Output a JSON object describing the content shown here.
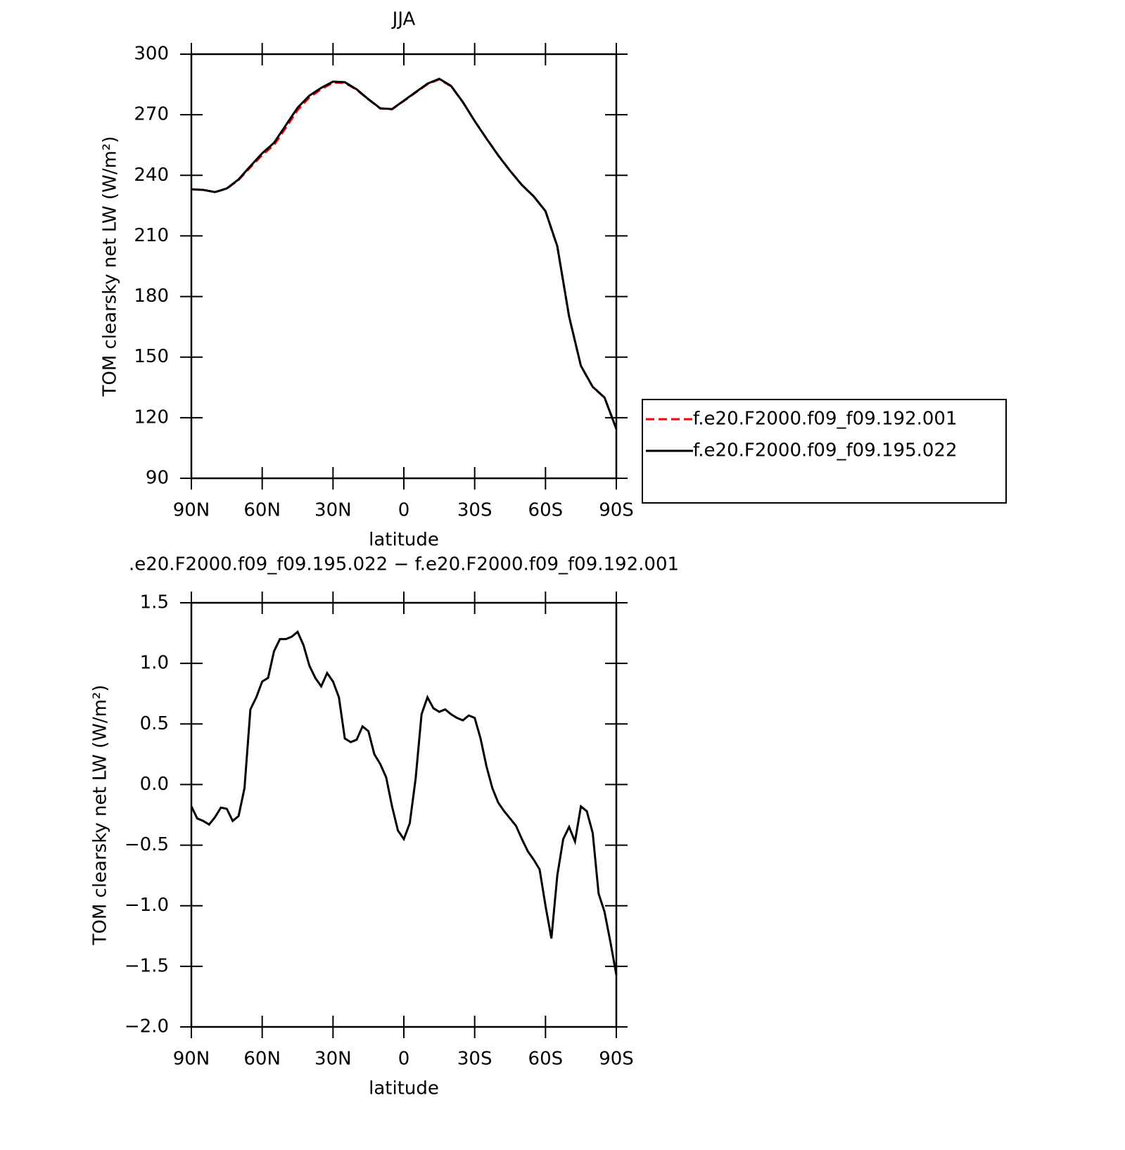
{
  "chart_data": [
    {
      "type": "line",
      "title": "JJA",
      "xlabel": "latitude",
      "ylabel": "TOM clearsky net LW (W/m²)",
      "x": [
        90,
        85,
        80,
        75,
        70,
        65,
        60,
        55,
        50,
        45,
        40,
        35,
        30,
        25,
        20,
        15,
        10,
        5,
        0,
        -5,
        -10,
        -15,
        -20,
        -25,
        -30,
        -35,
        -40,
        -45,
        -50,
        -55,
        -60,
        -65,
        -70,
        -75,
        -80,
        -85,
        -90
      ],
      "series": [
        {
          "name": "f.e20.F2000.f09_f09.192.001",
          "color": "#ff0000",
          "dash": "dashed",
          "values": [
            233.1,
            232.8,
            231.7,
            233.4,
            237.7,
            244.0,
            250.0,
            255.0,
            263.5,
            272.3,
            278.6,
            282.6,
            285.9,
            285.8,
            282.4,
            277.6,
            273.1,
            272.7,
            276.8,
            281.0,
            285.1,
            287.5,
            284.1,
            276.2,
            266.9,
            258.3,
            249.9,
            242.3,
            235.3,
            229.6,
            222.2,
            204.8,
            170.0,
            145.6,
            135.2,
            129.9,
            114.6
          ]
        },
        {
          "name": "f.e20.F2000.f09_f09.195.022",
          "color": "#000000",
          "dash": "solid",
          "values": [
            233.1,
            232.8,
            231.7,
            233.5,
            238.0,
            244.6,
            250.9,
            256.1,
            264.8,
            273.5,
            279.5,
            283.3,
            286.4,
            286.1,
            282.6,
            277.7,
            273.2,
            272.8,
            277.0,
            281.2,
            285.4,
            287.8,
            284.3,
            276.3,
            266.9,
            258.2,
            249.8,
            242.2,
            235.2,
            229.6,
            222.3,
            204.9,
            170.1,
            145.7,
            135.3,
            130.0,
            114.4
          ]
        }
      ],
      "xlim": [
        90,
        -90
      ],
      "xticks": [
        {
          "value": 90,
          "label": "90N"
        },
        {
          "value": 60,
          "label": "60N"
        },
        {
          "value": 30,
          "label": "30N"
        },
        0,
        {
          "value": -30,
          "label": "30S"
        },
        {
          "value": -60,
          "label": "60S"
        },
        {
          "value": -90,
          "label": "90S"
        }
      ],
      "ylim": [
        90,
        300
      ],
      "yticks": [
        90,
        120,
        150,
        180,
        210,
        240,
        270,
        300
      ],
      "legend": "right-outside"
    },
    {
      "type": "line",
      "title": ".e20.F2000.f09_f09.195.022 − f.e20.F2000.f09_f09.192.001",
      "xlabel": "latitude",
      "ylabel": "TOM clearsky net LW (W/m²)",
      "x": [
        90,
        87.5,
        85,
        82.5,
        80,
        77.5,
        75,
        72.5,
        70,
        67.5,
        65,
        62.5,
        60,
        57.5,
        55,
        52.5,
        50,
        47.5,
        45,
        42.5,
        40,
        37.5,
        35,
        32.5,
        30,
        27.5,
        25,
        22.5,
        20,
        17.5,
        15,
        12.5,
        10,
        7.5,
        5,
        2.5,
        0,
        -2.5,
        -5,
        -7.5,
        -10,
        -12.5,
        -15,
        -17.5,
        -20,
        -22.5,
        -25,
        -27.5,
        -30,
        -32.5,
        -35,
        -37.5,
        -40,
        -42.5,
        -45,
        -47.5,
        -50,
        -52.5,
        -55,
        -57.5,
        -60,
        -62.5,
        -65,
        -67.5,
        -70,
        -72.5,
        -75,
        -77.5,
        -80,
        -82.5,
        -85,
        -87.5,
        -90
      ],
      "color": "#000000",
      "values": [
        -0.18,
        -0.28,
        -0.3,
        -0.33,
        -0.27,
        -0.19,
        -0.2,
        -0.3,
        -0.26,
        -0.03,
        0.62,
        0.72,
        0.85,
        0.88,
        1.1,
        1.2,
        1.2,
        1.22,
        1.26,
        1.15,
        0.98,
        0.88,
        0.81,
        0.92,
        0.85,
        0.72,
        0.38,
        0.35,
        0.37,
        0.48,
        0.44,
        0.25,
        0.17,
        0.06,
        -0.18,
        -0.38,
        -0.45,
        -0.32,
        0.05,
        0.58,
        0.72,
        0.63,
        0.6,
        0.62,
        0.58,
        0.55,
        0.53,
        0.57,
        0.55,
        0.38,
        0.15,
        -0.03,
        -0.15,
        -0.22,
        -0.28,
        -0.34,
        -0.45,
        -0.55,
        -0.62,
        -0.7,
        -1.0,
        -1.27,
        -0.75,
        -0.45,
        -0.35,
        -0.47,
        -0.18,
        -0.22,
        -0.4,
        -0.9,
        -1.05,
        -1.3,
        -1.57
      ],
      "xlim": [
        90,
        -90
      ],
      "xticks": [
        {
          "value": 90,
          "label": "90N"
        },
        {
          "value": 60,
          "label": "60N"
        },
        {
          "value": 30,
          "label": "30N"
        },
        0,
        {
          "value": -30,
          "label": "30S"
        },
        {
          "value": -60,
          "label": "60S"
        },
        {
          "value": -90,
          "label": "90S"
        }
      ],
      "ylim": [
        -2,
        1.5
      ],
      "yticks": [
        {
          "value": -2,
          "label": "−2.0"
        },
        {
          "value": -1.5,
          "label": "−1.5"
        },
        {
          "value": -1,
          "label": "−1.0"
        },
        {
          "value": -0.5,
          "label": "−0.5"
        },
        {
          "value": 0,
          "label": "0.0"
        },
        0.5,
        {
          "value": 1,
          "label": "1.0"
        },
        1.5
      ]
    }
  ]
}
